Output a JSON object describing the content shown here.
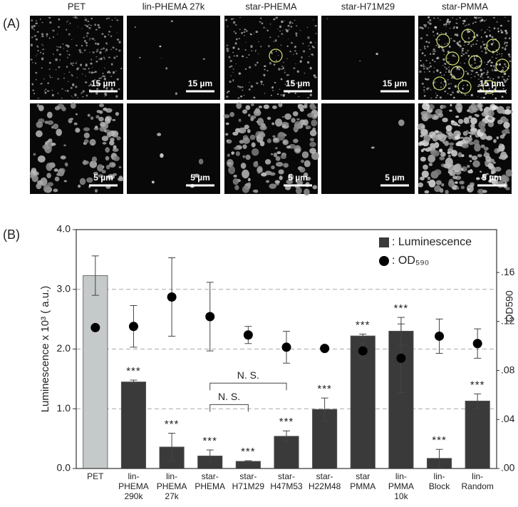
{
  "panel_a": {
    "label": "(A)",
    "columns": [
      {
        "title": "PET",
        "scale_top": "15 µm",
        "scale_bottom": "5 µm"
      },
      {
        "title": "lin-PHEMA 27k",
        "scale_top": "15 µm",
        "scale_bottom": "5 µm"
      },
      {
        "title": "star-PHEMA",
        "scale_top": "15 µm",
        "scale_bottom": "5 µm"
      },
      {
        "title": "star-H71M29",
        "scale_top": "15 µm",
        "scale_bottom": "5 µm"
      },
      {
        "title": "star-PMMA",
        "scale_top": "15 µm",
        "scale_bottom": "5 µm"
      }
    ]
  },
  "chart_data": {
    "type": "bar",
    "panel_label": "(B)",
    "y_label": "Luminescence x 10³ ( a.u.)",
    "y2_label": "OD590",
    "categories": [
      [
        "PET"
      ],
      [
        "lin-",
        "PHEMA",
        "290k"
      ],
      [
        "lin-",
        "PHEMA",
        "27k"
      ],
      [
        "star-",
        "PHEMA"
      ],
      [
        "star-",
        "H71M29"
      ],
      [
        "star-",
        "H47M53"
      ],
      [
        "star-",
        "H22M48"
      ],
      [
        "star",
        "PMMA"
      ],
      [
        "lin-",
        "PMMA",
        "10k"
      ],
      [
        "lin-",
        "Block"
      ],
      [
        "lin-",
        "Random"
      ]
    ],
    "series": [
      {
        "name": ": Luminescence",
        "type": "bar",
        "color": "#3a3a3a",
        "bar_colors": [
          "#c5c9c9",
          "#3a3a3a",
          "#3a3a3a",
          "#3a3a3a",
          "#3a3a3a",
          "#3a3a3a",
          "#3a3a3a",
          "#3a3a3a",
          "#3a3a3a",
          "#3a3a3a",
          "#3a3a3a"
        ],
        "values": [
          3.23,
          1.45,
          0.36,
          0.21,
          0.12,
          0.54,
          0.99,
          2.22,
          2.3,
          0.17,
          1.13
        ],
        "errors": [
          0.33,
          0.03,
          0.23,
          0.1,
          0.01,
          0.09,
          0.19,
          0.03,
          0.23,
          0.15,
          0.12
        ]
      },
      {
        "name": ": OD₅₉₀",
        "type": "scatter",
        "axis": "y2",
        "color": "#000000",
        "values": [
          0.115,
          0.116,
          0.14,
          0.124,
          0.109,
          0.099,
          0.098,
          0.096,
          0.09,
          0.108,
          0.102
        ],
        "errors": [
          0.002,
          0.017,
          0.032,
          0.028,
          0.007,
          0.013,
          0.002,
          0.006,
          0.028,
          0.014,
          0.012
        ]
      }
    ],
    "significance": [
      null,
      "***",
      "***",
      "***",
      "***",
      "***",
      "***",
      "***",
      "***",
      "***",
      "***"
    ],
    "brackets": [
      {
        "label": "N. S.",
        "from": 3,
        "to": 5
      },
      {
        "label": "N. S.",
        "from": 3,
        "to": 4
      }
    ],
    "ylim": [
      0,
      4
    ],
    "yticks": [
      {
        "value": 0,
        "label": "0.0"
      },
      {
        "value": 1,
        "label": "1.0"
      },
      {
        "value": 2,
        "label": "2.0"
      },
      {
        "value": 3,
        "label": "3.0"
      },
      {
        "value": 4,
        "label": "4.0"
      }
    ],
    "y2lim": [
      0,
      0.195
    ],
    "y2ticks": [
      {
        "value": 0,
        "label": ".00"
      },
      {
        "value": 0.04,
        "label": ".04"
      },
      {
        "value": 0.08,
        "label": ".08"
      },
      {
        "value": 0.12,
        "label": ".12"
      },
      {
        "value": 0.16,
        "label": ".16"
      }
    ],
    "grid": true,
    "legend": "upper right"
  }
}
